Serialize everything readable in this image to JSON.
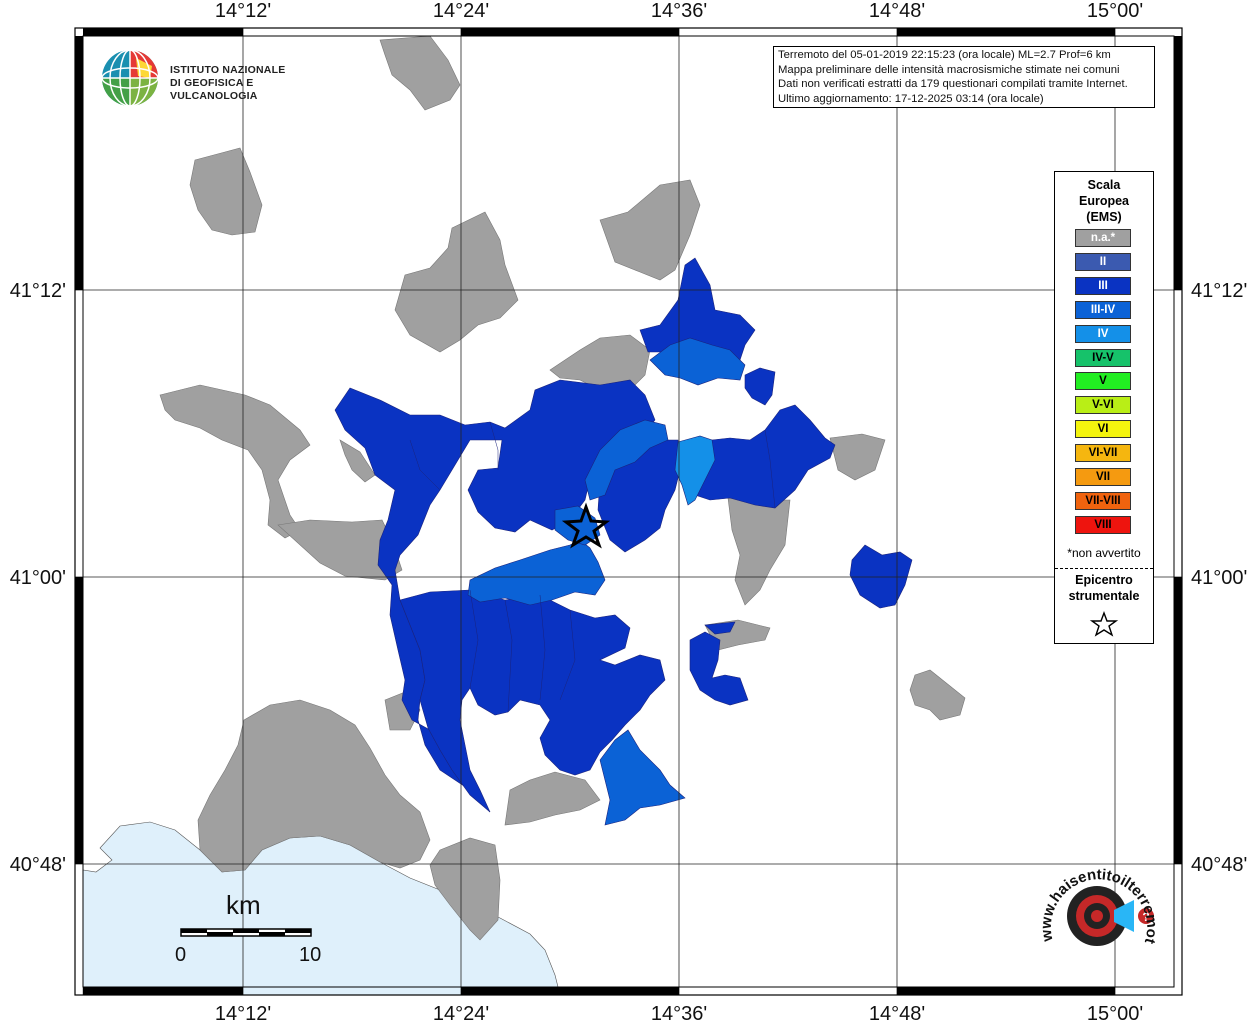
{
  "header": {
    "event_lines": [
      "Terremoto del 05-01-2019 22:15:23 (ora locale) ML=2.7 Prof=6 km",
      "Mappa preliminare delle intensità macrosismiche stimate nei comuni",
      "Dati non verificati estratti da 179 questionari compilati tramite Internet.",
      "Ultimo aggiornamento: 17-12-2025 03:14 (ora locale)"
    ]
  },
  "logo": {
    "line1": "ISTITUTO NAZIONALE",
    "line2": "DI GEOFISICA E VULCANOLOGIA"
  },
  "axes": {
    "lon_labels": [
      "14°12'",
      "14°24'",
      "14°36'",
      "14°48'",
      "15°00'"
    ],
    "lat_labels": [
      "41°12'",
      "41°00'",
      "40°48'"
    ]
  },
  "legend": {
    "title": [
      "Scala",
      "Europea",
      "(EMS)"
    ],
    "items": [
      {
        "label": "n.a.*",
        "color": "#a0a0a0",
        "text_color": "#ffffff"
      },
      {
        "label": "II",
        "color": "#3b5ab0",
        "text_color": "#ffffff"
      },
      {
        "label": "III",
        "color": "#0a33c2",
        "text_color": "#ffffff"
      },
      {
        "label": "III-IV",
        "color": "#0b62d6",
        "text_color": "#ffffff"
      },
      {
        "label": "IV",
        "color": "#1490e8",
        "text_color": "#ffffff"
      },
      {
        "label": "IV-V",
        "color": "#16c26a",
        "text_color": "#000000"
      },
      {
        "label": "V",
        "color": "#22ee22",
        "text_color": "#000000"
      },
      {
        "label": "V-VI",
        "color": "#b9ee16",
        "text_color": "#000000"
      },
      {
        "label": "VI",
        "color": "#f4f40e",
        "text_color": "#000000"
      },
      {
        "label": "VI-VII",
        "color": "#f5b60f",
        "text_color": "#000000"
      },
      {
        "label": "VII",
        "color": "#f59a10",
        "text_color": "#000000"
      },
      {
        "label": "VII-VIII",
        "color": "#f0630e",
        "text_color": "#000000"
      },
      {
        "label": "VIII",
        "color": "#ee140e",
        "text_color": "#000000"
      }
    ],
    "note": "*non avvertito",
    "epicenter_label": [
      "Epicentro",
      "strumentale"
    ],
    "epicenter_icon": "star-icon"
  },
  "scale_bar": {
    "unit": "km",
    "start": "0",
    "end": "10"
  },
  "watermark": {
    "text": "www.haisentitoilterremoto.it"
  },
  "colors": {
    "na": "#a0a0a0",
    "intensity_III": "#0a33c2",
    "intensity_III_IV": "#0b62d6",
    "intensity_IV": "#1490e8",
    "sea": "#dff0fb"
  }
}
